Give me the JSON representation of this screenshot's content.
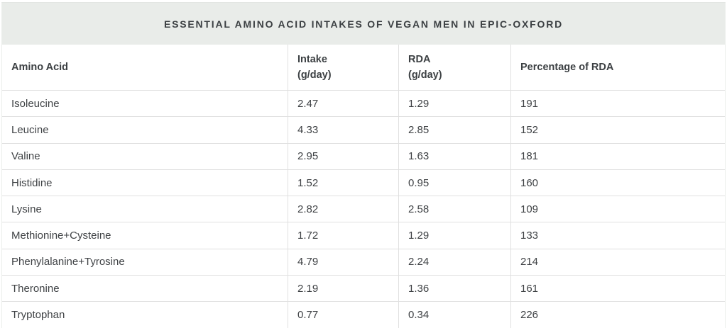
{
  "title": "ESSENTIAL AMINO ACID INTAKES OF VEGAN MEN IN EPIC-OXFORD",
  "table": {
    "columns": [
      {
        "label": "Amino Acid",
        "sub": ""
      },
      {
        "label": "Intake",
        "sub": "(g/day)"
      },
      {
        "label": "RDA",
        "sub": "(g/day)"
      },
      {
        "label": "Percentage of RDA",
        "sub": ""
      }
    ],
    "rows": [
      [
        "Isoleucine",
        "2.47",
        "1.29",
        "191"
      ],
      [
        "Leucine",
        "4.33",
        "2.85",
        "152"
      ],
      [
        "Valine",
        "2.95",
        "1.63",
        "181"
      ],
      [
        "Histidine",
        "1.52",
        "0.95",
        "160"
      ],
      [
        "Lysine",
        "2.82",
        "2.58",
        "109"
      ],
      [
        "Methionine+Cysteine",
        "1.72",
        "1.29",
        "133"
      ],
      [
        "Phenylalanine+Tyrosine",
        "4.79",
        "2.24",
        "214"
      ],
      [
        "Theronine",
        "2.19",
        "1.36",
        "161"
      ],
      [
        "Tryptophan",
        "0.77",
        "0.34",
        "226"
      ]
    ]
  },
  "colors": {
    "title_band_bg": "#e9ece9",
    "border": "#e0e0e0",
    "title_text": "#3c4043",
    "cell_text": "#3f4245"
  },
  "chart_data": {
    "type": "table",
    "title": "ESSENTIAL AMINO ACID INTAKES OF VEGAN MEN IN EPIC-OXFORD",
    "columns": [
      "Amino Acid",
      "Intake (g/day)",
      "RDA (g/day)",
      "Percentage of RDA"
    ],
    "rows": [
      {
        "amino_acid": "Isoleucine",
        "intake_g_day": 2.47,
        "rda_g_day": 1.29,
        "percentage_of_rda": 191
      },
      {
        "amino_acid": "Leucine",
        "intake_g_day": 4.33,
        "rda_g_day": 2.85,
        "percentage_of_rda": 152
      },
      {
        "amino_acid": "Valine",
        "intake_g_day": 2.95,
        "rda_g_day": 1.63,
        "percentage_of_rda": 181
      },
      {
        "amino_acid": "Histidine",
        "intake_g_day": 1.52,
        "rda_g_day": 0.95,
        "percentage_of_rda": 160
      },
      {
        "amino_acid": "Lysine",
        "intake_g_day": 2.82,
        "rda_g_day": 2.58,
        "percentage_of_rda": 109
      },
      {
        "amino_acid": "Methionine+Cysteine",
        "intake_g_day": 1.72,
        "rda_g_day": 1.29,
        "percentage_of_rda": 133
      },
      {
        "amino_acid": "Phenylalanine+Tyrosine",
        "intake_g_day": 4.79,
        "rda_g_day": 2.24,
        "percentage_of_rda": 214
      },
      {
        "amino_acid": "Theronine",
        "intake_g_day": 2.19,
        "rda_g_day": 1.36,
        "percentage_of_rda": 161
      },
      {
        "amino_acid": "Tryptophan",
        "intake_g_day": 0.77,
        "rda_g_day": 0.34,
        "percentage_of_rda": 226
      }
    ]
  }
}
